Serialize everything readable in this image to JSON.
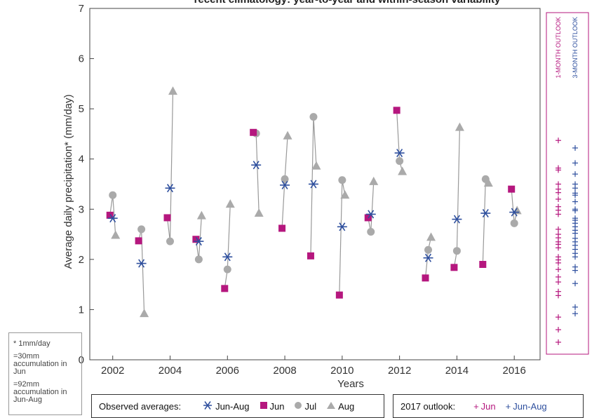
{
  "title_fragment": "recent climatology: year-to-year and within-season variability",
  "chart_data": {
    "type": "scatter",
    "xlabel": "Years",
    "ylabel": "Average daily precipitation* (mm/day)",
    "xticks": [
      "2002",
      "2004",
      "2006",
      "2008",
      "2010",
      "2012",
      "2014",
      "2016"
    ],
    "yticks": [
      "0",
      "1",
      "2",
      "3",
      "4",
      "5",
      "6",
      "7"
    ],
    "xlim": [
      2001.2,
      2016.9
    ],
    "ylim": [
      0,
      7
    ],
    "grid": false,
    "series": [
      {
        "name": "Jun-Aug",
        "symbol": "asterisk",
        "color": "#2e4f9e",
        "x": [
          2002,
          2003,
          2004,
          2005,
          2006,
          2007,
          2008,
          2009,
          2010,
          2011,
          2012,
          2013,
          2014,
          2015,
          2016
        ],
        "values": [
          2.82,
          1.92,
          3.42,
          2.36,
          2.05,
          3.88,
          3.48,
          3.5,
          2.65,
          2.9,
          4.12,
          2.03,
          2.8,
          2.92,
          2.94
        ]
      },
      {
        "name": "Jun",
        "symbol": "square",
        "color": "#b5177e",
        "x": [
          2002,
          2003,
          2004,
          2005,
          2006,
          2007,
          2008,
          2009,
          2010,
          2011,
          2012,
          2013,
          2014,
          2015,
          2016
        ],
        "values": [
          2.88,
          2.37,
          2.83,
          2.4,
          1.42,
          4.53,
          2.62,
          2.07,
          1.29,
          2.83,
          4.97,
          1.63,
          1.84,
          1.9,
          3.4
        ]
      },
      {
        "name": "Jul",
        "symbol": "circle",
        "color": "#aaaaaa",
        "x": [
          2002,
          2003,
          2004,
          2005,
          2006,
          2007,
          2008,
          2009,
          2010,
          2011,
          2012,
          2013,
          2014,
          2015,
          2016
        ],
        "values": [
          3.28,
          2.6,
          2.36,
          2.0,
          1.8,
          4.51,
          3.6,
          4.84,
          3.58,
          2.55,
          3.96,
          2.19,
          2.17,
          3.6,
          2.72
        ]
      },
      {
        "name": "Aug",
        "symbol": "triangle",
        "color": "#aaaaaa",
        "x": [
          2002,
          2003,
          2004,
          2005,
          2006,
          2007,
          2008,
          2009,
          2010,
          2011,
          2012,
          2013,
          2014,
          2015,
          2016
        ],
        "values": [
          2.48,
          0.92,
          5.35,
          2.87,
          3.1,
          2.92,
          4.46,
          3.86,
          3.28,
          3.55,
          3.75,
          2.44,
          4.63,
          3.52,
          2.97
        ]
      }
    ],
    "outlook": {
      "label_1": "1-MONTH OUTLOOK",
      "label_3": "3-MONTH OUTLOOK",
      "jun_color": "#b5177e",
      "jun_aug_color": "#2e4f9e",
      "jun": [
        4.37,
        3.82,
        3.78,
        3.5,
        3.4,
        3.33,
        3.2,
        3.05,
        2.98,
        2.9,
        2.6,
        2.5,
        2.43,
        2.35,
        2.3,
        2.23,
        2.05,
        1.99,
        1.93,
        1.8,
        1.65,
        1.55,
        1.36,
        1.28,
        0.85,
        0.6,
        0.35
      ],
      "jun_aug": [
        4.22,
        3.92,
        3.7,
        3.5,
        3.42,
        3.32,
        3.28,
        3.15,
        3.0,
        2.97,
        2.82,
        2.78,
        2.72,
        2.65,
        2.58,
        2.52,
        2.42,
        2.35,
        2.28,
        2.2,
        2.12,
        2.05,
        1.85,
        1.78,
        1.52,
        1.05,
        0.92
      ]
    }
  },
  "footnote": {
    "line1": "* 1mm/day",
    "line2": "=30mm accumulation in Jun",
    "line3": "=92mm accumulation in Jun-Aug"
  },
  "legend": {
    "observed_label": "Observed averages:",
    "jun_aug": "Jun-Aug",
    "jun": "Jun",
    "jul": "Jul",
    "aug": "Aug",
    "outlook_label": "2017 outlook:",
    "o_jun": "Jun",
    "o_jun_aug": "Jun-Aug"
  }
}
